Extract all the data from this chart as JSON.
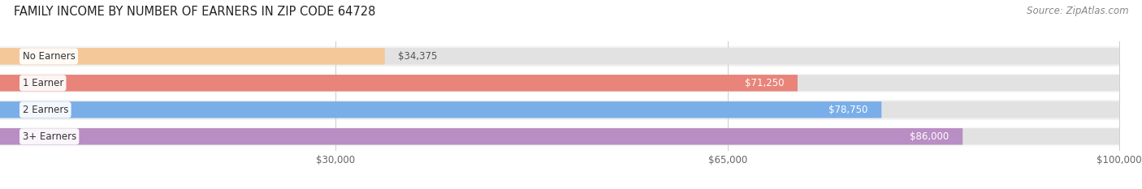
{
  "title": "FAMILY INCOME BY NUMBER OF EARNERS IN ZIP CODE 64728",
  "source": "Source: ZipAtlas.com",
  "categories": [
    "No Earners",
    "1 Earner",
    "2 Earners",
    "3+ Earners"
  ],
  "values": [
    34375,
    71250,
    78750,
    86000
  ],
  "bar_colors": [
    "#f5c89a",
    "#e8847a",
    "#7aaee8",
    "#b98ec4"
  ],
  "row_bg_colors": [
    "#f0f0f0",
    "#f8f8f8",
    "#f0f0f0",
    "#f8f8f8"
  ],
  "x_min": 0,
  "x_max": 100000,
  "x_axis_start": 30000,
  "x_ticks": [
    30000,
    65000,
    100000
  ],
  "x_tick_labels": [
    "$30,000",
    "$65,000",
    "$100,000"
  ],
  "background_color": "#ffffff",
  "bar_background_color": "#e2e2e2",
  "title_fontsize": 10.5,
  "source_fontsize": 8.5,
  "label_fontsize": 8.5,
  "value_fontsize": 8.5,
  "value_outside_color": "#555555",
  "value_inside_color": "#ffffff",
  "value_inside_dark_color": "#555555"
}
